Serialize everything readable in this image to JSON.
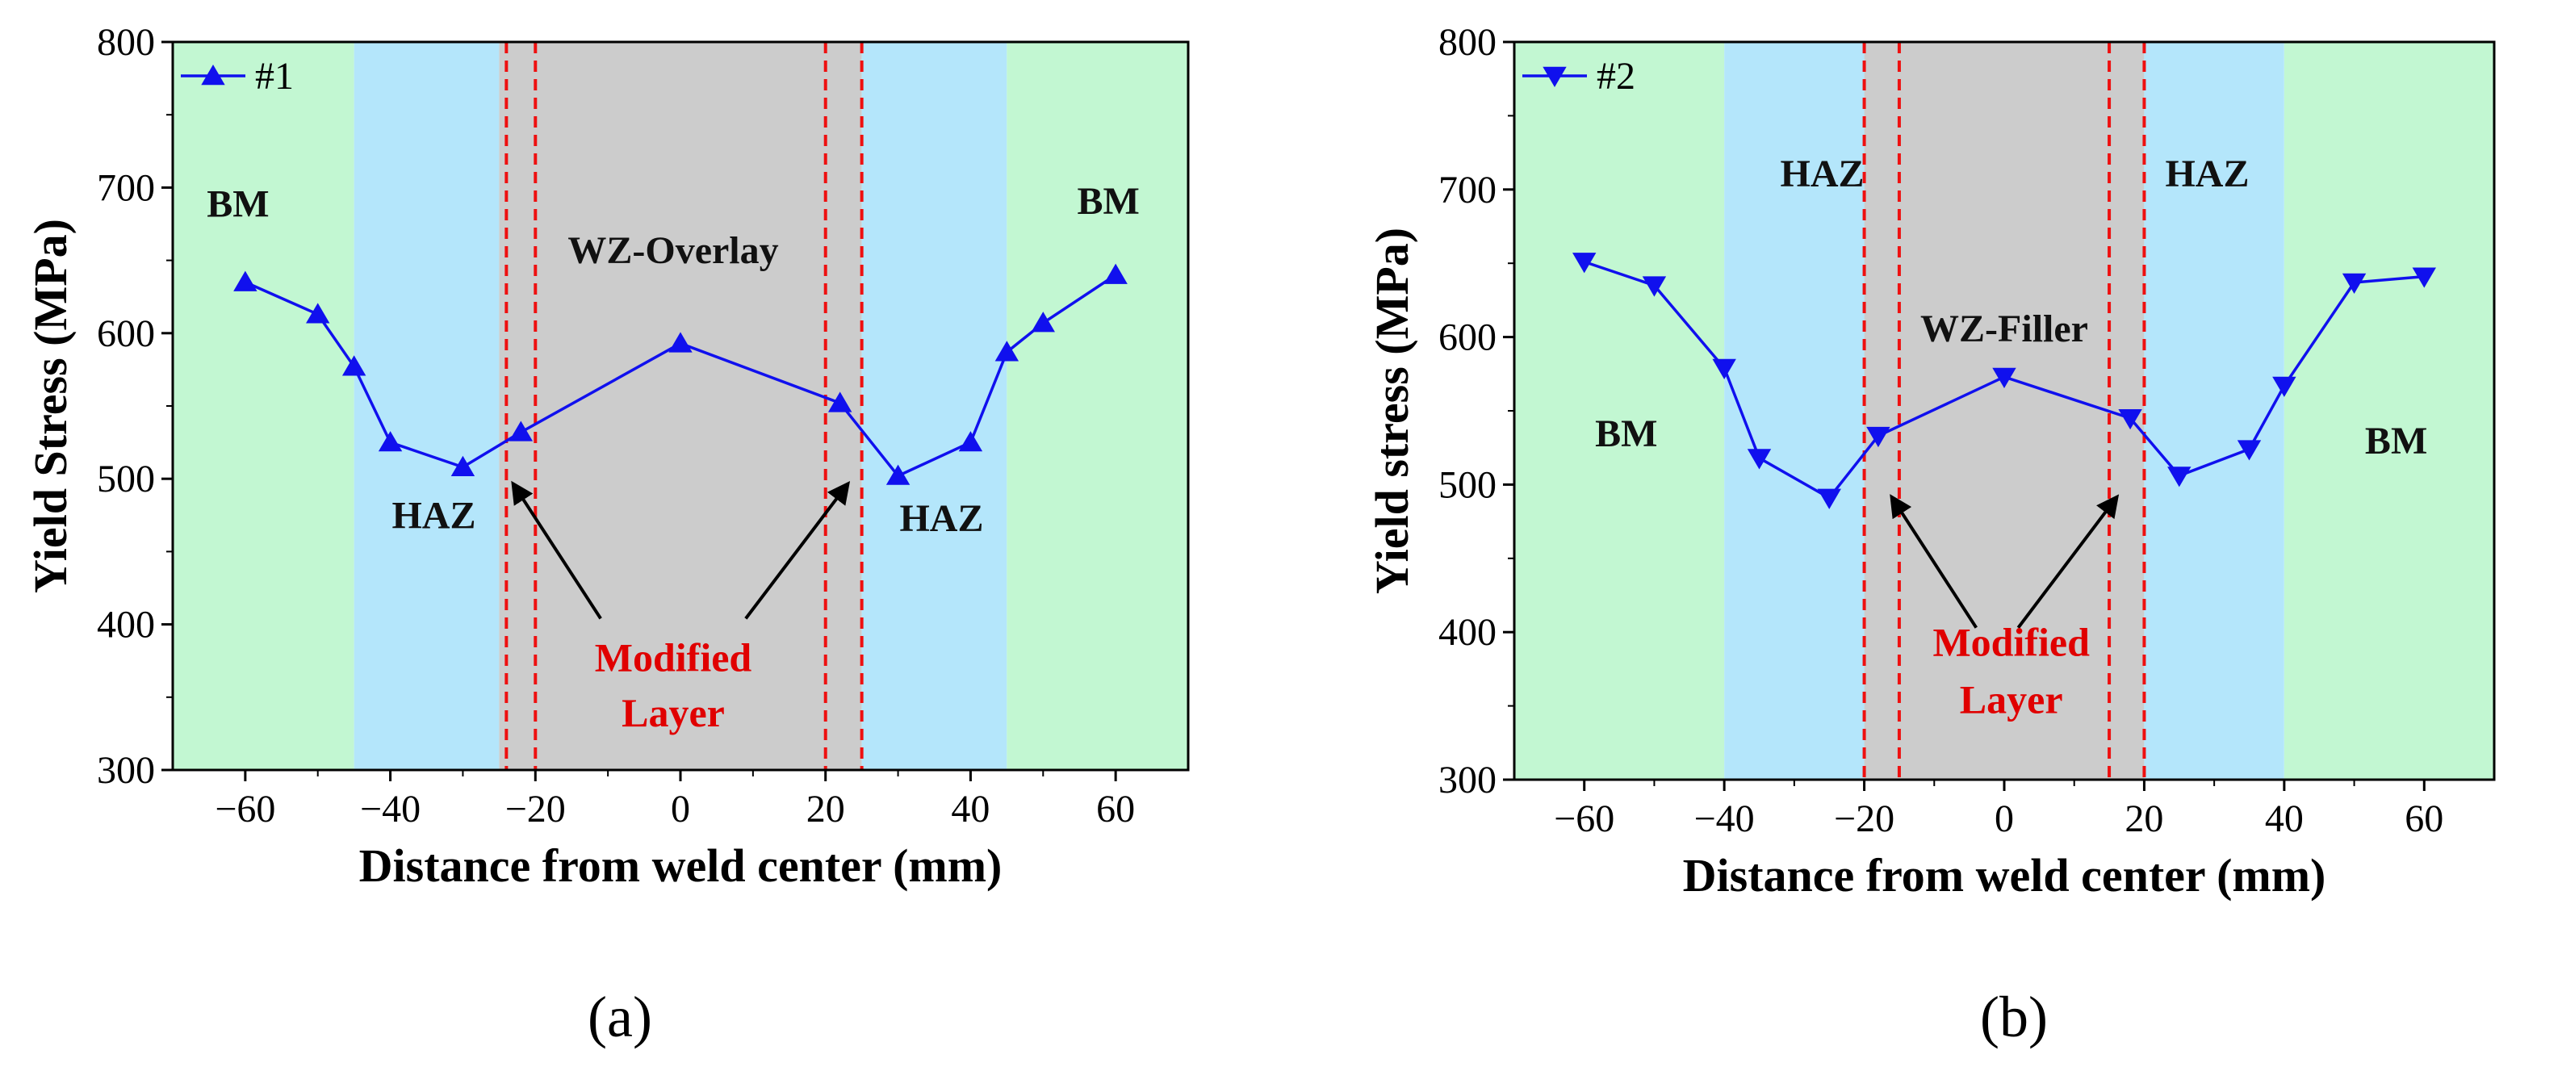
{
  "colors": {
    "bm": "#c2f7d2",
    "haz": "#b4e6fb",
    "wz": "#cccccc",
    "series": "#1010ee",
    "boundary": "#ee1010",
    "annotation": "#e00000"
  },
  "chart_data": [
    {
      "type": "line",
      "panel_label": "(a)",
      "xlabel": "Distance from weld center (mm)",
      "ylabel": "Yield Stress (MPa)",
      "xlim": [
        -70,
        70
      ],
      "ylim": [
        300,
        800
      ],
      "xticks": [
        -60,
        -40,
        -20,
        0,
        20,
        40,
        60
      ],
      "yticks": [
        300,
        400,
        500,
        600,
        700,
        800
      ],
      "legend_position": "top-left",
      "series": [
        {
          "name": "#1",
          "marker": "triangle-up",
          "x": [
            -60,
            -50,
            -45,
            -40,
            -30,
            -22,
            0,
            22,
            30,
            40,
            45,
            50,
            60
          ],
          "y": [
            635,
            613,
            577,
            525,
            508,
            532,
            593,
            552,
            502,
            525,
            587,
            607,
            640
          ]
        }
      ],
      "regions": [
        {
          "from": -70,
          "to": -45,
          "type": "bm"
        },
        {
          "from": -45,
          "to": -25,
          "type": "haz"
        },
        {
          "from": -25,
          "to": 25,
          "type": "wz"
        },
        {
          "from": 25,
          "to": 45,
          "type": "haz"
        },
        {
          "from": 45,
          "to": 70,
          "type": "bm"
        }
      ],
      "boundary_lines": [
        -24,
        -20,
        20,
        25
      ],
      "region_labels": [
        {
          "text": "BM",
          "x": -61,
          "y": 680
        },
        {
          "text": "BM",
          "x": 59,
          "y": 682
        },
        {
          "text": "HAZ",
          "x": -34,
          "y": 466
        },
        {
          "text": "HAZ",
          "x": 36,
          "y": 464
        },
        {
          "text": "WZ-Overlay",
          "x": -1,
          "y": 648
        }
      ],
      "annotation": {
        "lines": [
          "Modified",
          "Layer"
        ],
        "x": -1,
        "y": 368,
        "y2": 330,
        "arrows": [
          {
            "from": [
              -11,
              404
            ],
            "to": [
              -23,
              496
            ]
          },
          {
            "from": [
              9,
              404
            ],
            "to": [
              23,
              496
            ]
          }
        ]
      }
    },
    {
      "type": "line",
      "panel_label": "(b)",
      "xlabel": "Distance from weld center (mm)",
      "ylabel": "Yield stress (MPa)",
      "xlim": [
        -70,
        70
      ],
      "ylim": [
        300,
        800
      ],
      "xticks": [
        -60,
        -40,
        -20,
        0,
        20,
        40,
        60
      ],
      "yticks": [
        300,
        400,
        500,
        600,
        700,
        800
      ],
      "legend_position": "top-left",
      "series": [
        {
          "name": "#2",
          "marker": "triangle-down",
          "x": [
            -60,
            -50,
            -40,
            -35,
            -25,
            -18,
            0,
            18,
            25,
            35,
            40,
            50,
            60
          ],
          "y": [
            651,
            635,
            579,
            518,
            491,
            533,
            573,
            545,
            506,
            524,
            567,
            637,
            641
          ]
        }
      ],
      "regions": [
        {
          "from": -70,
          "to": -40,
          "type": "bm"
        },
        {
          "from": -40,
          "to": -20,
          "type": "haz"
        },
        {
          "from": -20,
          "to": 20,
          "type": "wz"
        },
        {
          "from": 20,
          "to": 40,
          "type": "haz"
        },
        {
          "from": 40,
          "to": 70,
          "type": "bm"
        }
      ],
      "boundary_lines": [
        -20,
        -15,
        15,
        20
      ],
      "region_labels": [
        {
          "text": "HAZ",
          "x": -26,
          "y": 702
        },
        {
          "text": "HAZ",
          "x": 29,
          "y": 702
        },
        {
          "text": "WZ-Filler",
          "x": 0,
          "y": 597
        },
        {
          "text": "BM",
          "x": -54,
          "y": 526
        },
        {
          "text": "BM",
          "x": 56,
          "y": 521
        }
      ],
      "annotation": {
        "lines": [
          "Modified",
          "Layer"
        ],
        "x": 1,
        "y": 384,
        "y2": 345,
        "arrows": [
          {
            "from": [
              -4,
              403
            ],
            "to": [
              -16,
              491
            ]
          },
          {
            "from": [
              2,
              403
            ],
            "to": [
              16,
              491
            ]
          }
        ]
      }
    }
  ]
}
